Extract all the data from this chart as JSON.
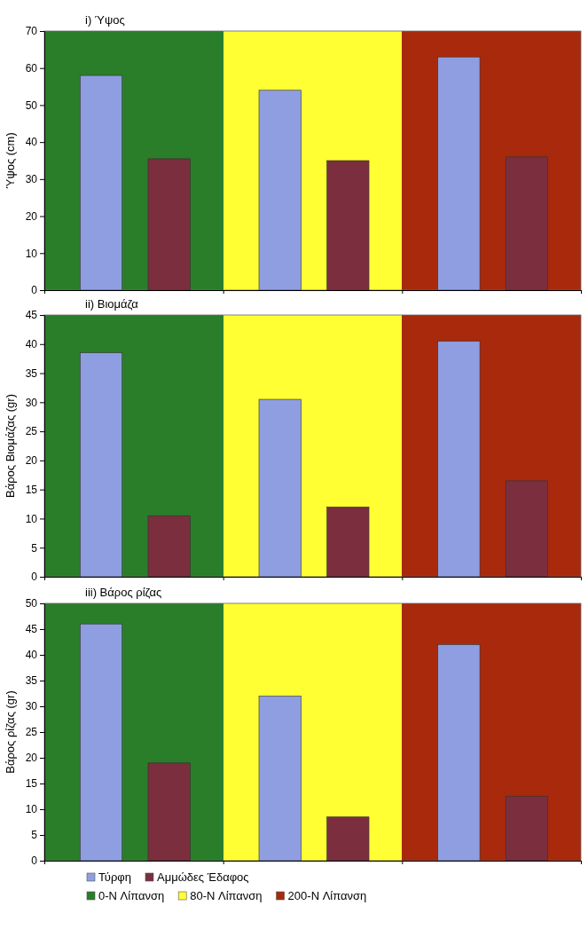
{
  "chart_data": [
    {
      "type": "bar",
      "title": "i) Ύψος",
      "ylabel": "Ύψος (cm)",
      "categories": [
        null,
        null,
        null
      ],
      "series": [
        {
          "color": "#8e9ee0",
          "values": [
            58,
            54,
            63
          ]
        },
        {
          "color": "#7b2e3e",
          "values": [
            35.5,
            35,
            36
          ]
        }
      ],
      "ylim": [
        0,
        70
      ],
      "yticks": [
        0,
        10,
        20,
        30,
        40,
        50,
        60,
        70
      ]
    },
    {
      "type": "bar",
      "title": "ii) Βιομάζα",
      "ylabel": "Βάρος Βιομάζας (gr)",
      "categories": [
        null,
        null,
        null
      ],
      "series": [
        {
          "color": "#8e9ee0",
          "values": [
            38.5,
            30.5,
            40.5
          ]
        },
        {
          "color": "#7b2e3e",
          "values": [
            10.5,
            12,
            16.5
          ]
        }
      ],
      "ylim": [
        0,
        45
      ],
      "yticks": [
        0,
        5,
        10,
        15,
        20,
        25,
        30,
        35,
        40,
        45
      ]
    },
    {
      "type": "bar",
      "title": "iii) Βάρος ρίζας",
      "ylabel": "Βάρος ρίζας (gr)",
      "categories": [
        null,
        null,
        null
      ],
      "series": [
        {
          "name": "Τύρφη",
          "color": "#8e9ee0",
          "values": [
            46,
            32,
            42
          ]
        },
        {
          "name": "Αμμώδες Έδαφος",
          "color": "#7b2e3e",
          "values": [
            19,
            8.5,
            12.5
          ]
        }
      ],
      "ylim": [
        0,
        50
      ],
      "yticks": [
        0,
        5,
        10,
        15,
        20,
        25,
        30,
        35,
        40,
        45,
        50
      ],
      "legend": "bottom",
      "annotations": [
        "0-N Λίπανση",
        "80-N Λίπανση",
        "200-N Λίπανση"
      ]
    }
  ]
}
